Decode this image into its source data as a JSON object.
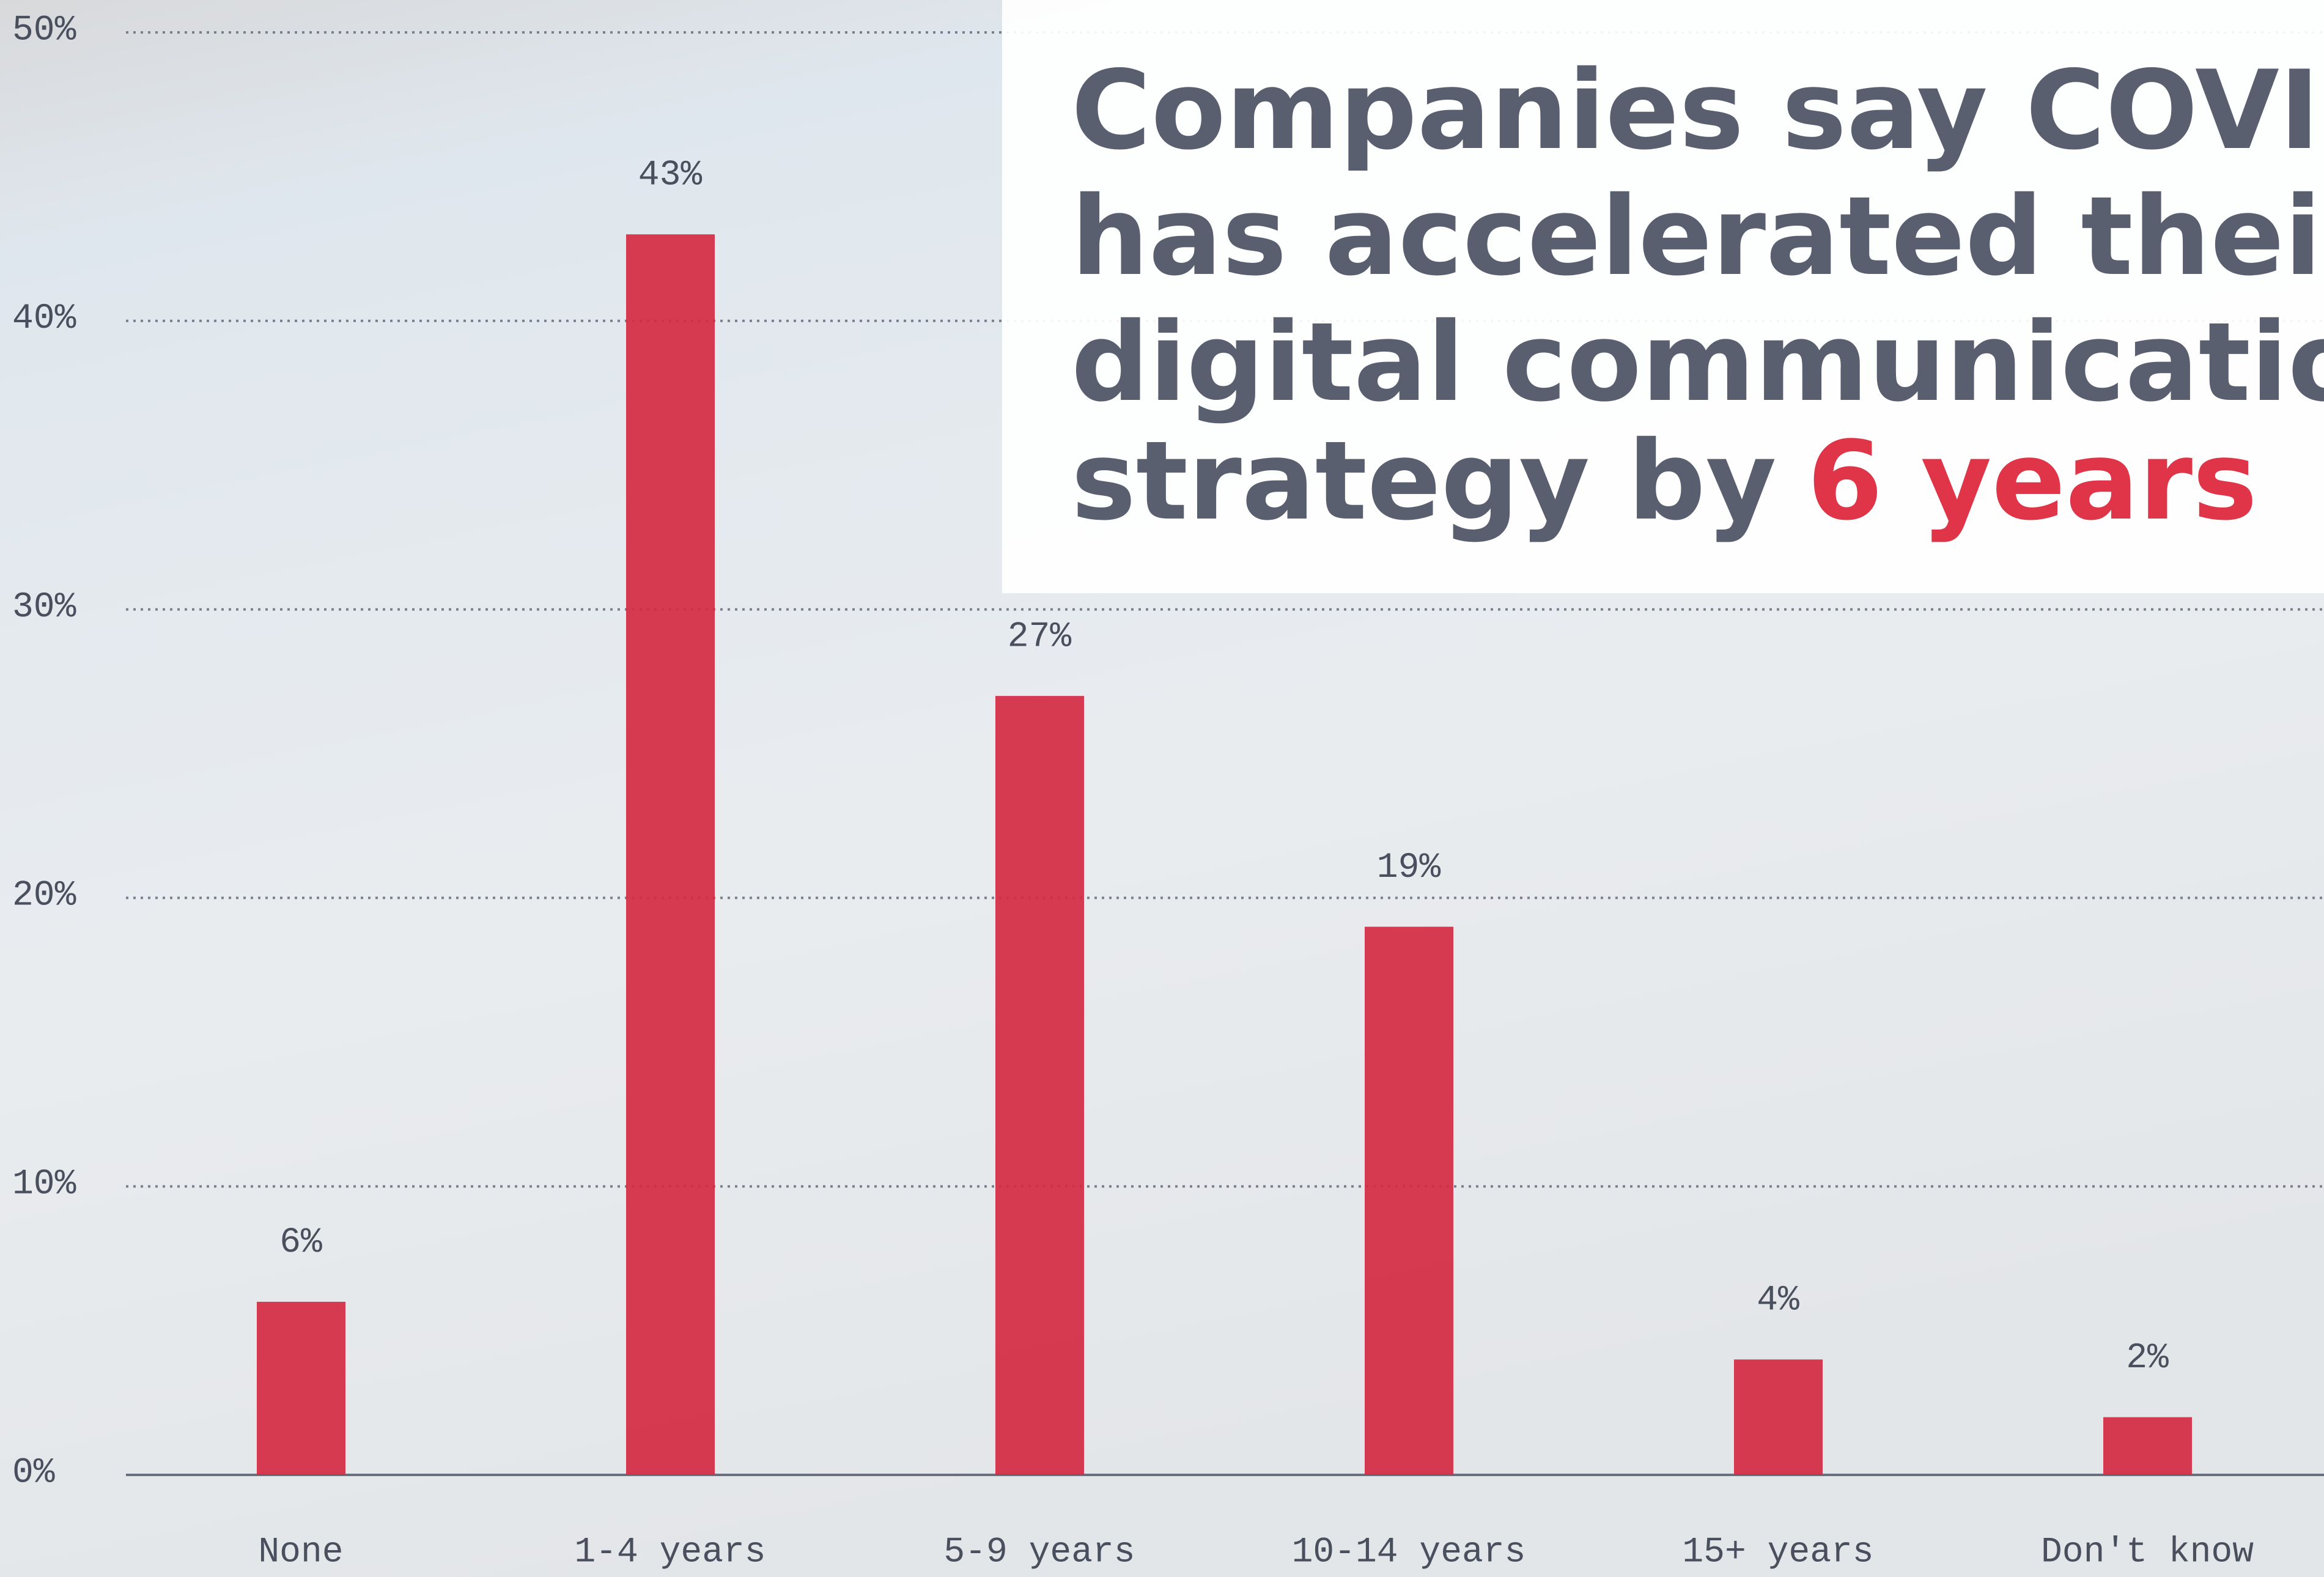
{
  "chart_data": {
    "type": "bar",
    "title_lines": [
      "Companies say COVID-",
      "has accelerated their",
      "digital communication",
      "strategy by"
    ],
    "title_highlight": "6 years",
    "categories": [
      "None",
      "1-4 years",
      "5-9 years",
      "10-14 years",
      "15+ years",
      "Don't know"
    ],
    "values": [
      6,
      43,
      27,
      19,
      4,
      2
    ],
    "value_labels": [
      "6%",
      "43%",
      "27%",
      "19%",
      "4%",
      "2%"
    ],
    "color": "#d42a42",
    "ylim": [
      0,
      50
    ],
    "yticks": [
      {
        "value": 0,
        "label": "0%"
      },
      {
        "value": 10,
        "label": "10%"
      },
      {
        "value": 20,
        "label": "20%"
      },
      {
        "value": 30,
        "label": "30%"
      },
      {
        "value": 40,
        "label": "40%"
      },
      {
        "value": 50,
        "label": "50%"
      }
    ],
    "grid": true
  }
}
